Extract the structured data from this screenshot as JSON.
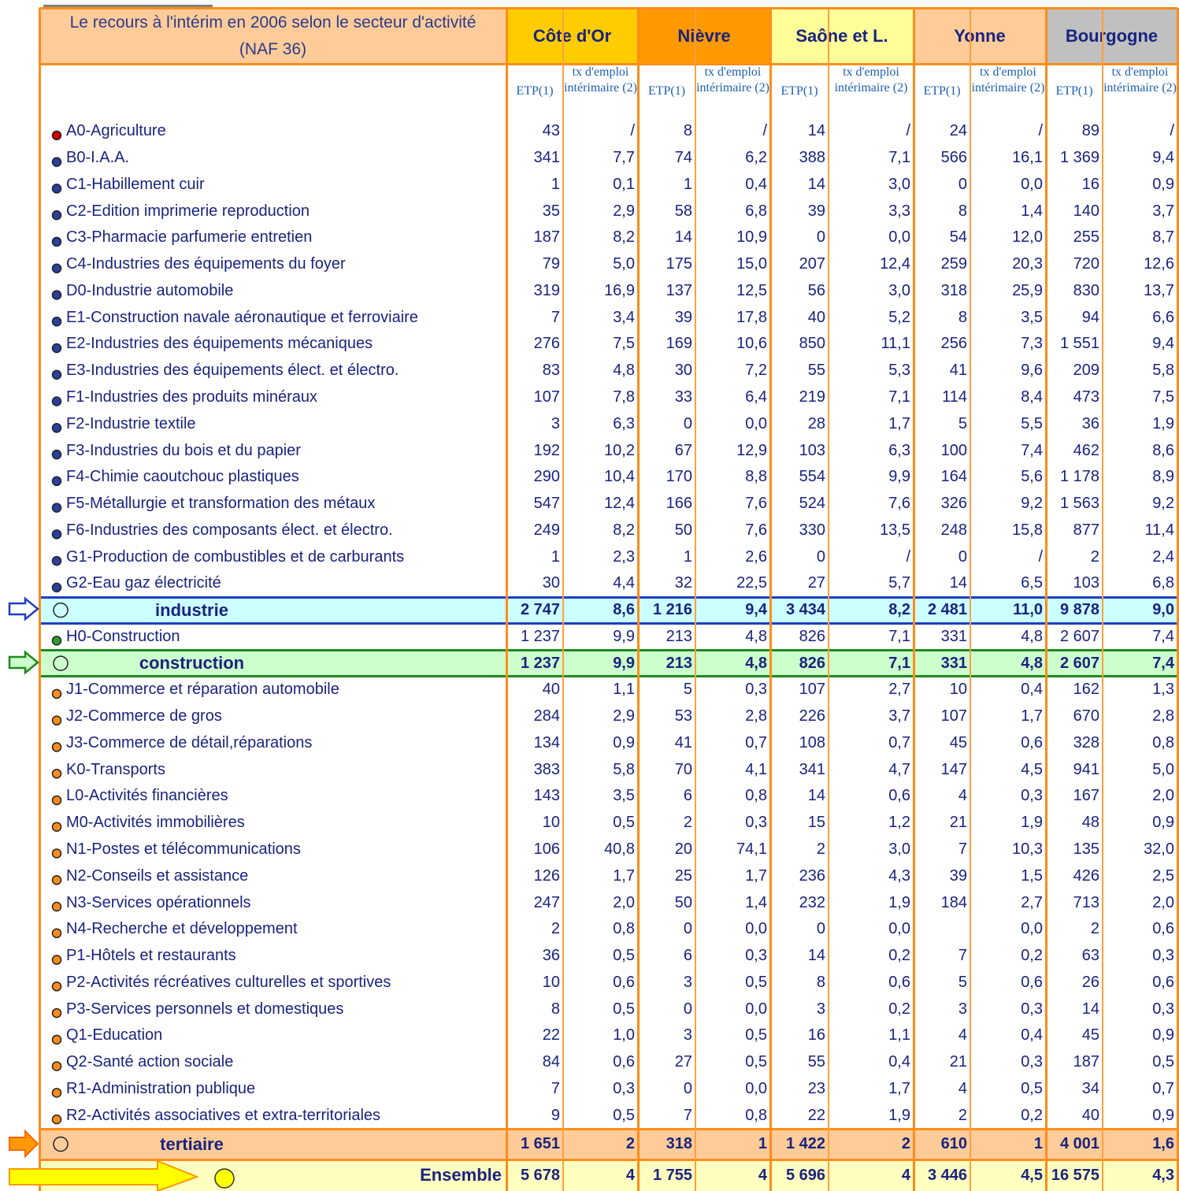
{
  "header": {
    "title": "Le recours à l'intérim en 2006 selon le secteur d'activité (NAF 36)",
    "regions": [
      "Côte d'Or",
      "Nièvre",
      "Saône et L.",
      "Yonne",
      "Bourgogne"
    ],
    "subheaders": [
      "ETP(1)",
      "tx d'emploi intérimaire (2)"
    ]
  },
  "table": {
    "rows": [
      {
        "label": "A0-Agriculture",
        "values": [
          "43",
          "/",
          "8",
          "/",
          "14",
          "/",
          "24",
          "/",
          "89",
          "/"
        ]
      },
      {
        "label": "B0-I.A.A.",
        "values": [
          "341",
          "7,7",
          "74",
          "6,2",
          "388",
          "7,1",
          "566",
          "16,1",
          "1 369",
          "9,4"
        ]
      },
      {
        "label": "C1-Habillement cuir",
        "values": [
          "1",
          "0,1",
          "1",
          "0,4",
          "14",
          "3,0",
          "0",
          "0,0",
          "16",
          "0,9"
        ]
      },
      {
        "label": "C2-Edition imprimerie reproduction",
        "values": [
          "35",
          "2,9",
          "58",
          "6,8",
          "39",
          "3,3",
          "8",
          "1,4",
          "140",
          "3,7"
        ]
      },
      {
        "label": "C3-Pharmacie parfumerie entretien",
        "values": [
          "187",
          "8,2",
          "14",
          "10,9",
          "0",
          "0,0",
          "54",
          "12,0",
          "255",
          "8,7"
        ]
      },
      {
        "label": "C4-Industries des équipements du foyer",
        "values": [
          "79",
          "5,0",
          "175",
          "15,0",
          "207",
          "12,4",
          "259",
          "20,3",
          "720",
          "12,6"
        ]
      },
      {
        "label": "D0-Industrie automobile",
        "values": [
          "319",
          "16,9",
          "137",
          "12,5",
          "56",
          "3,0",
          "318",
          "25,9",
          "830",
          "13,7"
        ]
      },
      {
        "label": "E1-Construction navale aéronautique et ferroviaire",
        "values": [
          "7",
          "3,4",
          "39",
          "17,8",
          "40",
          "5,2",
          "8",
          "3,5",
          "94",
          "6,6"
        ]
      },
      {
        "label": "E2-Industries des équipements mécaniques",
        "values": [
          "276",
          "7,5",
          "169",
          "10,6",
          "850",
          "11,1",
          "256",
          "7,3",
          "1 551",
          "9,4"
        ]
      },
      {
        "label": "E3-Industries des équipements élect. et électro.",
        "values": [
          "83",
          "4,8",
          "30",
          "7,2",
          "55",
          "5,3",
          "41",
          "9,6",
          "209",
          "5,8"
        ]
      },
      {
        "label": "F1-Industries des produits minéraux",
        "values": [
          "107",
          "7,8",
          "33",
          "6,4",
          "219",
          "7,1",
          "114",
          "8,4",
          "473",
          "7,5"
        ]
      },
      {
        "label": "F2-Industrie textile",
        "values": [
          "3",
          "6,3",
          "0",
          "0,0",
          "28",
          "1,7",
          "5",
          "5,5",
          "36",
          "1,9"
        ]
      },
      {
        "label": "F3-Industries du bois et du papier",
        "values": [
          "192",
          "10,2",
          "67",
          "12,9",
          "103",
          "6,3",
          "100",
          "7,4",
          "462",
          "8,6"
        ]
      },
      {
        "label": "F4-Chimie caoutchouc plastiques",
        "values": [
          "290",
          "10,4",
          "170",
          "8,8",
          "554",
          "9,9",
          "164",
          "5,6",
          "1 178",
          "8,9"
        ]
      },
      {
        "label": "F5-Métallurgie et transformation des métaux",
        "values": [
          "547",
          "12,4",
          "166",
          "7,6",
          "524",
          "7,6",
          "326",
          "9,2",
          "1 563",
          "9,2"
        ]
      },
      {
        "label": "F6-Industries des composants élect. et électro.",
        "values": [
          "249",
          "8,2",
          "50",
          "7,6",
          "330",
          "13,5",
          "248",
          "15,8",
          "877",
          "11,4"
        ]
      },
      {
        "label": "G1-Production de combustibles et de carburants",
        "values": [
          "1",
          "2,3",
          "1",
          "2,6",
          "0",
          "/",
          "0",
          "/",
          "2",
          "2,4"
        ]
      },
      {
        "label": "G2-Eau gaz électricité",
        "values": [
          "30",
          "4,4",
          "32",
          "22,5",
          "27",
          "5,7",
          "14",
          "6,5",
          "103",
          "6,8"
        ]
      },
      {
        "label": "industrie",
        "values": [
          "2 747",
          "8,6",
          "1 216",
          "9,4",
          "3 434",
          "8,2",
          "2 481",
          "11,0",
          "9 878",
          "9,0"
        ]
      },
      {
        "label": "H0-Construction",
        "values": [
          "1 237",
          "9,9",
          "213",
          "4,8",
          "826",
          "7,1",
          "331",
          "4,8",
          "2 607",
          "7,4"
        ]
      },
      {
        "label": "construction",
        "values": [
          "1 237",
          "9,9",
          "213",
          "4,8",
          "826",
          "7,1",
          "331",
          "4,8",
          "2 607",
          "7,4"
        ]
      },
      {
        "label": "J1-Commerce et réparation automobile",
        "values": [
          "40",
          "1,1",
          "5",
          "0,3",
          "107",
          "2,7",
          "10",
          "0,4",
          "162",
          "1,3"
        ]
      },
      {
        "label": "J2-Commerce de gros",
        "values": [
          "284",
          "2,9",
          "53",
          "2,8",
          "226",
          "3,7",
          "107",
          "1,7",
          "670",
          "2,8"
        ]
      },
      {
        "label": "J3-Commerce de détail,réparations",
        "values": [
          "134",
          "0,9",
          "41",
          "0,7",
          "108",
          "0,7",
          "45",
          "0,6",
          "328",
          "0,8"
        ]
      },
      {
        "label": "K0-Transports",
        "values": [
          "383",
          "5,8",
          "70",
          "4,1",
          "341",
          "4,7",
          "147",
          "4,5",
          "941",
          "5,0"
        ]
      },
      {
        "label": "L0-Activités financières",
        "values": [
          "143",
          "3,5",
          "6",
          "0,8",
          "14",
          "0,6",
          "4",
          "0,3",
          "167",
          "2,0"
        ]
      },
      {
        "label": "M0-Activités immobilières",
        "values": [
          "10",
          "0,5",
          "2",
          "0,3",
          "15",
          "1,2",
          "21",
          "1,9",
          "48",
          "0,9"
        ]
      },
      {
        "label": "N1-Postes et télécommunications",
        "values": [
          "106",
          "40,8",
          "20",
          "74,1",
          "2",
          "3,0",
          "7",
          "10,3",
          "135",
          "32,0"
        ]
      },
      {
        "label": "N2-Conseils et assistance",
        "values": [
          "126",
          "1,7",
          "25",
          "1,7",
          "236",
          "4,3",
          "39",
          "1,5",
          "426",
          "2,5"
        ]
      },
      {
        "label": "N3-Services opérationnels",
        "values": [
          "247",
          "2,0",
          "50",
          "1,4",
          "232",
          "1,9",
          "184",
          "2,7",
          "713",
          "2,0"
        ]
      },
      {
        "label": "N4-Recherche et développement",
        "values": [
          "2",
          "0,8",
          "0",
          "0,0",
          "0",
          "0,0",
          null,
          "0,0",
          "2",
          "0,6"
        ]
      },
      {
        "label": "P1-Hôtels et restaurants",
        "values": [
          "36",
          "0,5",
          "6",
          "0,3",
          "14",
          "0,2",
          "7",
          "0,2",
          "63",
          "0,3"
        ]
      },
      {
        "label": "P2-Activités récréatives culturelles et sportives",
        "values": [
          "10",
          "0,6",
          "3",
          "0,5",
          "8",
          "0,6",
          "5",
          "0,6",
          "26",
          "0,6"
        ]
      },
      {
        "label": "P3-Services personnels et domestiques",
        "values": [
          "8",
          "0,5",
          "0",
          "0,0",
          "3",
          "0,2",
          "3",
          "0,3",
          "14",
          "0,3"
        ]
      },
      {
        "label": "Q1-Education",
        "values": [
          "22",
          "1,0",
          "3",
          "0,5",
          "16",
          "1,1",
          "4",
          "0,4",
          "45",
          "0,9"
        ]
      },
      {
        "label": "Q2-Santé action sociale",
        "values": [
          "84",
          "0,6",
          "27",
          "0,5",
          "55",
          "0,4",
          "21",
          "0,3",
          "187",
          "0,5"
        ]
      },
      {
        "label": "R1-Administration publique",
        "values": [
          "7",
          "0,3",
          "0",
          "0,0",
          "23",
          "1,7",
          "4",
          "0,5",
          "34",
          "0,7"
        ]
      },
      {
        "label": "R2-Activités associatives et extra-territoriales",
        "values": [
          "9",
          "0,5",
          "7",
          "0,8",
          "22",
          "1,9",
          "2",
          "0,2",
          "40",
          "0,9"
        ]
      },
      {
        "label": "tertiaire",
        "values": [
          "1 651",
          "2",
          "318",
          "1",
          "1 422",
          "2",
          "610",
          "1",
          "4 001",
          "1,6"
        ]
      },
      {
        "label": "Ensemble",
        "values": [
          "5 678",
          "4",
          "1 755",
          "4",
          "5 696",
          "4",
          "3 446",
          "4,5",
          "16 575",
          "4,3"
        ]
      }
    ]
  }
}
